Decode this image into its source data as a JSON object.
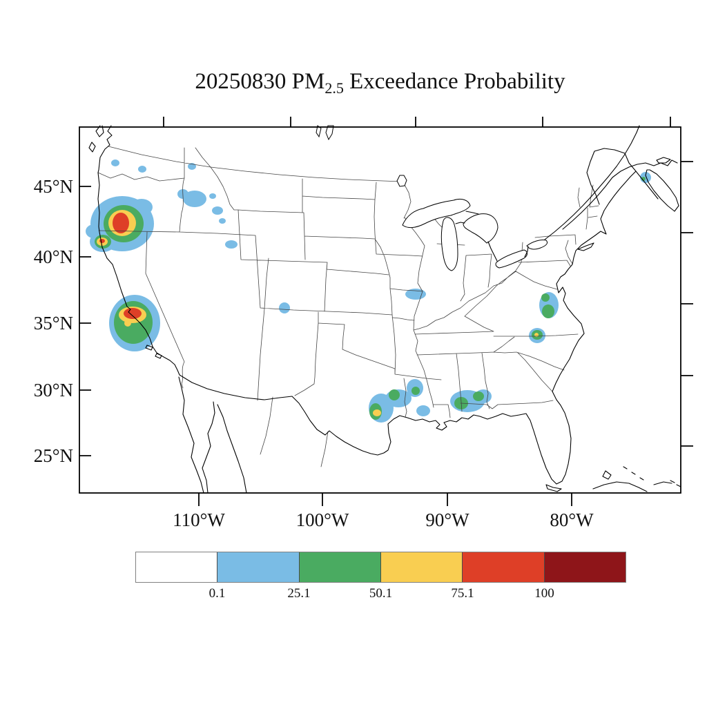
{
  "title": {
    "prefix": "20250830 PM",
    "subscript": "2.5",
    "suffix": " Exceedance Probability"
  },
  "axes": {
    "lat": {
      "labels": [
        "45°N",
        "40°N",
        "35°N",
        "30°N",
        "25°N"
      ],
      "y": [
        86,
        188,
        284,
        381,
        476
      ]
    },
    "lon": {
      "labels": [
        "110°W",
        "100°W",
        "90°W",
        "80°W"
      ],
      "x": [
        173,
        352,
        533,
        713
      ]
    },
    "top_ticks_x": [
      122,
      306,
      487,
      671,
      856
    ],
    "right_ticks_y": [
      50,
      153,
      256,
      360,
      462
    ]
  },
  "colorbar": {
    "labels": [
      "0.1",
      "25.1",
      "50.1",
      "75.1",
      "100"
    ],
    "colors": [
      "#FFFFFF",
      "#7ABCE5",
      "#4AAB61",
      "#F9CE51",
      "#DE3F27",
      "#8E1519"
    ],
    "level_colors": {
      "p25": "#7ABCE5",
      "p50": "#4AAB61",
      "p75": "#F9CE51",
      "p100": "#DE3F27"
    }
  },
  "chart_data": {
    "type": "heatmap",
    "title": "20250830 PM2.5 Exceedance Probability",
    "date": "20250830",
    "variable": "PM2.5 exceedance probability",
    "units": "%",
    "legend_position": "bottom",
    "bins": [
      {
        "color": "#FFFFFF",
        "range": "< 0.1"
      },
      {
        "color": "#7ABCE5",
        "range": "0.1 - 25.1"
      },
      {
        "color": "#4AAB61",
        "range": "25.1 - 50.1"
      },
      {
        "color": "#F9CE51",
        "range": "50.1 - 75.1"
      },
      {
        "color": "#DE3F27",
        "range": "75.1 - 100"
      },
      {
        "color": "#8E1519",
        "range": "100"
      }
    ],
    "hotspots": [
      {
        "name": "oregon",
        "levels": {
          "p25": [
            [
              62,
              140,
              46,
              40
            ],
            [
              90,
              116,
              16,
              12
            ],
            [
              34,
              166,
              19,
              15
            ],
            [
              21,
              151,
              12,
              10
            ]
          ],
          "p50": [
            [
              64,
              140,
              29,
              27
            ],
            [
              34,
              166,
              12,
              10
            ]
          ],
          "p75": [
            [
              62,
              139,
              20,
              19
            ],
            [
              33,
              166,
              8,
              6
            ]
          ],
          "p100": [
            [
              60,
              139,
              12,
              15
            ],
            [
              33,
              165,
              4,
              3
            ]
          ]
        }
      },
      {
        "name": "washington",
        "levels": {
          "p25": [
            [
              52,
              52,
              6,
              5
            ],
            [
              91,
              61,
              6,
              5
            ]
          ]
        }
      },
      {
        "name": "idaho-montana",
        "levels": {
          "p25": [
            [
              163,
              57,
              6,
              5
            ],
            [
              150,
              97,
              8,
              7
            ],
            [
              167,
              104,
              17,
              12
            ],
            [
              193,
              100,
              5,
              4
            ],
            [
              200,
              121,
              8,
              6
            ],
            [
              207,
              136,
              5,
              4
            ],
            [
              220,
              170,
              9,
              6
            ]
          ]
        }
      },
      {
        "name": "sierra-nevada",
        "levels": {
          "p25": [
            [
              80,
              284,
              37,
              41
            ]
          ],
          "p50": [
            [
              78,
              283,
              28,
              31
            ]
          ],
          "p75": [
            [
              77,
              272,
              20,
              12
            ],
            [
              70,
              284,
              5,
              5
            ]
          ],
          "p100": [
            [
              77,
              270,
              13,
              8
            ]
          ]
        }
      },
      {
        "name": "colorado-plateau",
        "levels": {
          "p25": [
            [
              297,
              262,
              8,
              8
            ]
          ]
        }
      },
      {
        "name": "iowa-missouri",
        "levels": {
          "p25": [
            [
              487,
              242,
              15,
              8
            ]
          ]
        }
      },
      {
        "name": "texas-gulf",
        "levels": {
          "p25": [
            [
              437,
              407,
              18,
              21
            ],
            [
              462,
              393,
              19,
              13
            ]
          ],
          "p50": [
            [
              456,
              388,
              8,
              8
            ],
            [
              429,
              412,
              9,
              12
            ]
          ],
          "p75": [
            [
              431,
              414,
              6,
              5
            ]
          ]
        }
      },
      {
        "name": "east-texas",
        "levels": {
          "p25": [
            [
              486,
              378,
              12,
              13
            ]
          ],
          "p50": [
            [
              487,
              382,
              6,
              6
            ]
          ]
        }
      },
      {
        "name": "louisiana",
        "levels": {
          "p25": [
            [
              498,
              411,
              10,
              8
            ]
          ]
        }
      },
      {
        "name": "mississippi-alabama",
        "levels": {
          "p25": [
            [
              562,
              397,
              25,
              16
            ],
            [
              585,
              390,
              12,
              10
            ]
          ],
          "p50": [
            [
              553,
              400,
              10,
              9
            ],
            [
              578,
              390,
              8,
              7
            ]
          ]
        }
      },
      {
        "name": "virginia",
        "levels": {
          "p25": [
            [
              680,
              258,
              14,
              19
            ]
          ],
          "p50": [
            [
              675,
              247,
              6,
              6
            ],
            [
              679,
              267,
              9,
              10
            ]
          ]
        }
      },
      {
        "name": "north-carolina",
        "levels": {
          "p25": [
            [
              663,
              302,
              12,
              11
            ]
          ],
          "p50": [
            [
              663,
              301,
              8,
              7
            ]
          ],
          "p75": [
            [
              662,
              301,
              3,
              3
            ]
          ]
        }
      },
      {
        "name": "nova-scotia",
        "levels": {
          "p25": [
            [
              820,
              73,
              8,
              8
            ]
          ],
          "p50": [
            [
              817,
              75,
              3,
              3
            ]
          ]
        }
      }
    ]
  }
}
